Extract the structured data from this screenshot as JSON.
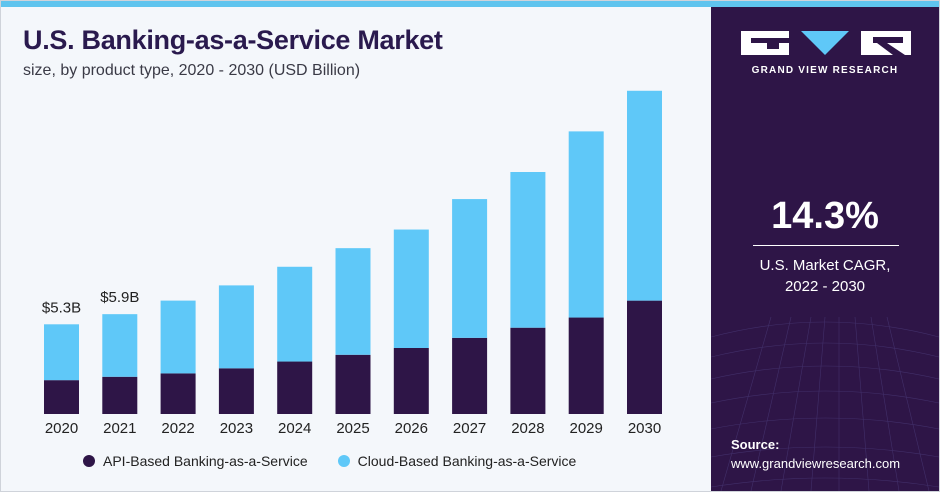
{
  "header": {
    "title": "U.S. Banking-as-a-Service Market",
    "subtitle": "size, by product type, 2020 - 2030 (USD Billion)"
  },
  "colors": {
    "api": "#2e1547",
    "cloud": "#5fc8f8",
    "topbar": "#5fc4ee",
    "sidebar": "#2e1547"
  },
  "chart_data": {
    "type": "bar",
    "stacked": true,
    "categories": [
      "2020",
      "2021",
      "2022",
      "2023",
      "2024",
      "2025",
      "2026",
      "2027",
      "2028",
      "2029",
      "2030"
    ],
    "series": [
      {
        "name": "API-Based Banking-as-a-Service",
        "values": [
          2.0,
          2.2,
          2.4,
          2.7,
          3.1,
          3.5,
          3.9,
          4.5,
          5.1,
          5.7,
          6.7
        ]
      },
      {
        "name": "Cloud-Based Banking-as-a-Service",
        "values": [
          3.3,
          3.7,
          4.3,
          4.9,
          5.6,
          6.3,
          7.0,
          8.2,
          9.2,
          11.0,
          12.4
        ]
      }
    ],
    "data_labels": [
      {
        "category": "2020",
        "text": "$5.3B"
      },
      {
        "category": "2021",
        "text": "$5.9B"
      }
    ],
    "ylim": [
      0,
      19.5
    ],
    "grid": false,
    "legend_position": "bottom"
  },
  "legend": {
    "api_label": "API-Based Banking-as-a-Service",
    "cloud_label": "Cloud-Based Banking-as-a-Service"
  },
  "sidebar": {
    "logo_icon": "grand-view-research-logo-icon",
    "brand": "GRAND VIEW RESEARCH",
    "cagr_value": "14.3%",
    "cagr_label_line1": "U.S. Market CAGR,",
    "cagr_label_line2": "2022 - 2030",
    "source_label": "Source:",
    "source_url": "www.grandviewresearch.com"
  }
}
